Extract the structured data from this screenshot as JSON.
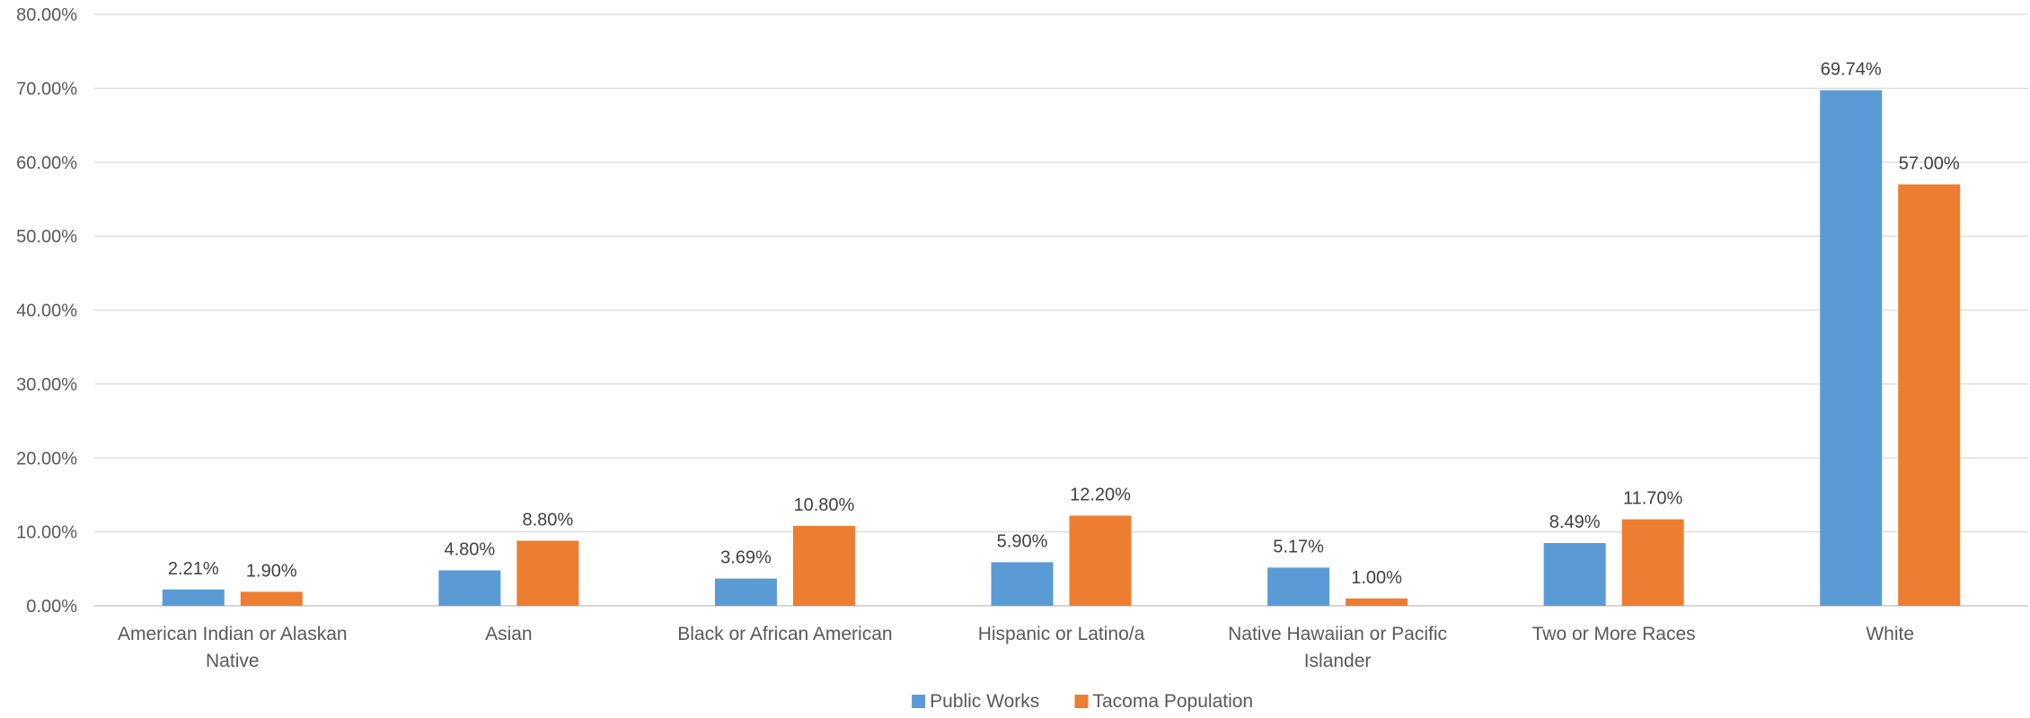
{
  "chart_data": {
    "type": "bar",
    "title": "",
    "xlabel": "",
    "ylabel": "",
    "ylim": [
      0,
      80
    ],
    "y_ticks": [
      "0.00%",
      "10.00%",
      "20.00%",
      "30.00%",
      "40.00%",
      "50.00%",
      "60.00%",
      "70.00%",
      "80.00%"
    ],
    "grid": "horizontal",
    "legend_position": "bottom",
    "categories": [
      [
        "American Indian or Alaskan",
        "Native"
      ],
      [
        "Asian"
      ],
      [
        "Black or African American"
      ],
      [
        "Hispanic or Latino/a"
      ],
      [
        "Native Hawaiian or Pacific",
        "Islander"
      ],
      [
        "Two or More Races"
      ],
      [
        "White"
      ]
    ],
    "series": [
      {
        "name": "Public Works",
        "color": "#5B9BD5",
        "values": [
          2.21,
          4.8,
          3.69,
          5.9,
          5.17,
          8.49,
          69.74
        ],
        "labels": [
          "2.21%",
          "4.80%",
          "3.69%",
          "5.90%",
          "5.17%",
          "8.49%",
          "69.74%"
        ]
      },
      {
        "name": "Tacoma Population",
        "color": "#ED7D31",
        "values": [
          1.9,
          8.8,
          10.8,
          12.2,
          1.0,
          11.7,
          57.0
        ],
        "labels": [
          "1.90%",
          "8.80%",
          "10.80%",
          "12.20%",
          "1.00%",
          "11.70%",
          "57.00%"
        ]
      }
    ]
  }
}
